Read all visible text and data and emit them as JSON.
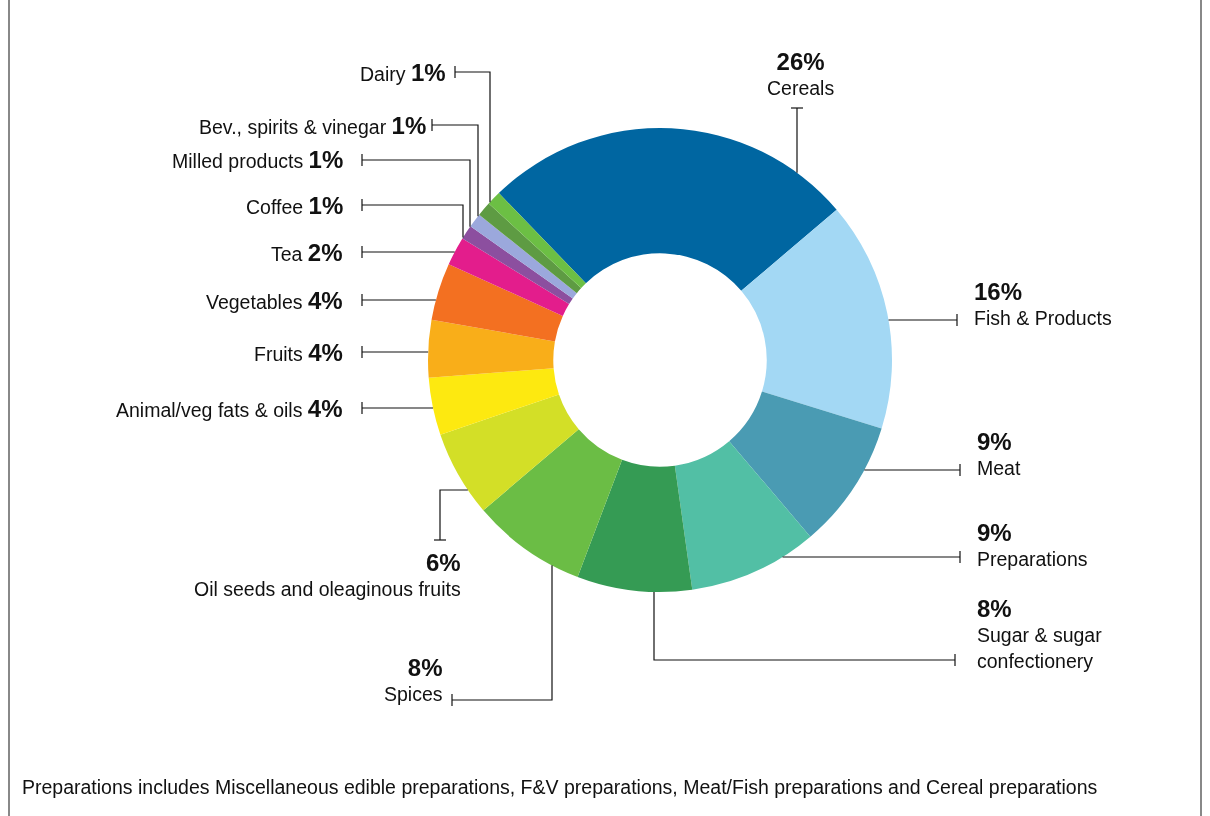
{
  "chart_data": {
    "type": "donut",
    "categories": [
      "Cereals",
      "Fish & Products",
      "Meat",
      "Preparations",
      "Sugar & sugar confectionery",
      "Spices",
      "Oil seeds and oleaginous fruits",
      "Animal/veg fats & oils",
      "Fruits",
      "Vegetables",
      "Tea",
      "Coffee",
      "Milled products",
      "Bev., spirits & vinegar",
      "Dairy"
    ],
    "values": [
      26,
      16,
      9,
      9,
      8,
      8,
      6,
      4,
      4,
      4,
      2,
      1,
      1,
      1,
      1
    ],
    "value_labels": [
      "26%",
      "16%",
      "9%",
      "9%",
      "8%",
      "8%",
      "6%",
      "4%",
      "4%",
      "4%",
      "2%",
      "1%",
      "1%",
      "1%",
      "1%"
    ],
    "colors": [
      "#0066a1",
      "#a3d8f4",
      "#4a9bb3",
      "#52bfa5",
      "#359b54",
      "#6bbd45",
      "#d3df27",
      "#fde910",
      "#f9ae19",
      "#f37021",
      "#e31d8c",
      "#8c4f9f",
      "#9ba8dc",
      "#5e9b43",
      "#6cbf44"
    ],
    "legend": false,
    "annotations": [
      "Preparations includes Miscellaneous edible preparations, F&V preparations, Meat/Fish preparations and Cereal preparations"
    ]
  }
}
